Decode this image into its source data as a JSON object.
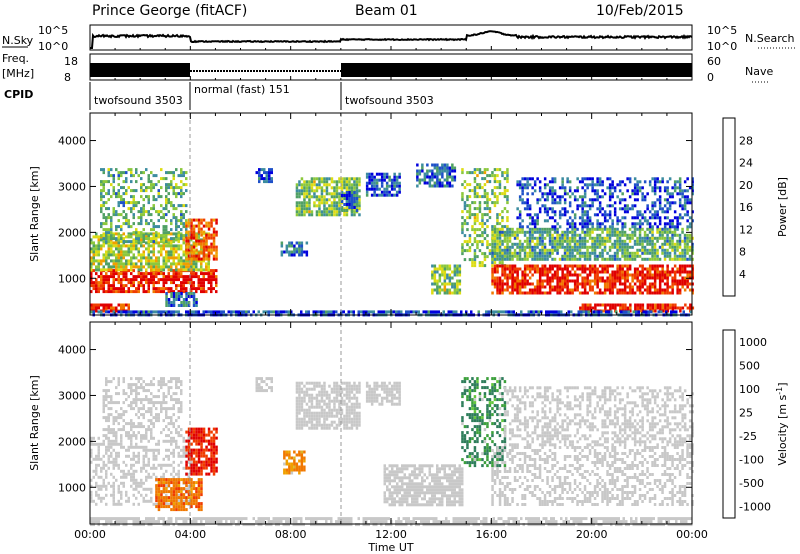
{
  "header": {
    "title": "Prince George (fitACF)",
    "beam": "Beam 01",
    "date": "10/Feb/2015"
  },
  "sky_panel": {
    "label": "N.Sky",
    "right_label": "N.Search",
    "left_ticks": [
      "10^5",
      "10^0"
    ],
    "right_ticks": [
      "10^5",
      "10^0"
    ]
  },
  "freq_panel": {
    "label_line1": "Freq.",
    "label_line2": "[MHz]",
    "left_ticks": [
      "18",
      "8"
    ],
    "right_ticks": [
      "60",
      "0"
    ],
    "right_label": "Nave"
  },
  "cpid": {
    "label": "CPID",
    "segments": [
      {
        "name": "twofsound 3503",
        "start_hour": 0,
        "end_hour": 4
      },
      {
        "name": "normal (fast) 151",
        "start_hour": 4,
        "end_hour": 10
      },
      {
        "name": "twofsound 3503",
        "start_hour": 10,
        "end_hour": 24
      }
    ]
  },
  "chart_data": [
    {
      "type": "heatmap",
      "name": "power",
      "ylabel": "Slant Range [km]",
      "yticks": [
        "1000",
        "2000",
        "3000",
        "4000"
      ],
      "ylim": [
        200,
        4600
      ],
      "xlim": [
        0,
        24
      ],
      "colorbar": {
        "label": "Power [dB]",
        "tick_labels": [
          "4",
          "8",
          "12",
          "16",
          "20",
          "24",
          "28"
        ],
        "colors": [
          "#0000dd",
          "#1e50c8",
          "#3c8ca0",
          "#50a064",
          "#8cc83c",
          "#dcdc14",
          "#f0a000",
          "#f07800",
          "#f03c00",
          "#e00000"
        ]
      },
      "regions": [
        {
          "t0": 0.0,
          "t1": 5.0,
          "r0": 700,
          "r1": 1200,
          "value": 28
        },
        {
          "t0": 0.0,
          "t1": 1.5,
          "r0": 300,
          "r1": 450,
          "value": 28
        },
        {
          "t0": 0.0,
          "t1": 4.7,
          "r0": 1200,
          "r1": 2000,
          "value": 16
        },
        {
          "t0": 0.4,
          "t1": 3.8,
          "r0": 1800,
          "r1": 3400,
          "value": 12
        },
        {
          "t0": 3.8,
          "t1": 5.0,
          "r0": 1400,
          "r1": 2300,
          "value": 24
        },
        {
          "t0": 3.0,
          "t1": 4.2,
          "r0": 400,
          "r1": 700,
          "value": 8
        },
        {
          "t0": 6.6,
          "t1": 7.2,
          "r0": 3100,
          "r1": 3400,
          "value": 6
        },
        {
          "t0": 7.6,
          "t1": 8.6,
          "r0": 1500,
          "r1": 1800,
          "value": 8
        },
        {
          "t0": 8.2,
          "t1": 10.7,
          "r0": 2400,
          "r1": 3200,
          "value": 14
        },
        {
          "t0": 10.0,
          "t1": 10.6,
          "r0": 2500,
          "r1": 2900,
          "value": 8
        },
        {
          "t0": 11.0,
          "t1": 12.3,
          "r0": 2800,
          "r1": 3300,
          "value": 6
        },
        {
          "t0": 13.6,
          "t1": 14.7,
          "r0": 700,
          "r1": 1300,
          "value": 14
        },
        {
          "t0": 13.0,
          "t1": 14.5,
          "r0": 3000,
          "r1": 3500,
          "value": 8
        },
        {
          "t0": 14.8,
          "t1": 16.6,
          "r0": 1300,
          "r1": 3400,
          "value": 14
        },
        {
          "t0": 16.0,
          "t1": 17.0,
          "r0": 700,
          "r1": 1300,
          "value": 28
        },
        {
          "t0": 16.0,
          "t1": 24.0,
          "r0": 1400,
          "r1": 2100,
          "value": 12
        },
        {
          "t0": 16.8,
          "t1": 24.0,
          "r0": 650,
          "r1": 1300,
          "value": 28
        },
        {
          "t0": 19.5,
          "t1": 24.0,
          "r0": 300,
          "r1": 450,
          "value": 28
        },
        {
          "t0": 17.0,
          "t1": 24.0,
          "r0": 2100,
          "r1": 3200,
          "value": 6
        },
        {
          "t0": 0.0,
          "t1": 24.0,
          "r0": 200,
          "r1": 300,
          "value": 6
        }
      ]
    },
    {
      "type": "heatmap",
      "name": "velocity",
      "ylabel": "Slant Range [km]",
      "yticks": [
        "1000",
        "2000",
        "3000",
        "4000"
      ],
      "ylim": [
        200,
        4600
      ],
      "xlim": [
        0,
        24
      ],
      "xticks": [
        "00:00",
        "04:00",
        "08:00",
        "12:00",
        "16:00",
        "20:00",
        "00:00"
      ],
      "xlabel": "Time UT",
      "colorbar": {
        "label_main": "Velocity [m s",
        "label_sup": "-1",
        "label_end": "]",
        "tick_labels": [
          "1000",
          "500",
          "100",
          "25",
          "-25",
          "-100",
          "-500",
          "-1000"
        ],
        "colors": [
          "#1e2aa0",
          "#2850c8",
          "#2e7d5a",
          "#3ca03c",
          "#64c83c",
          "#c8c8c8",
          "#c8c8c8",
          "#dcb428",
          "#f0a000",
          "#f07800",
          "#f03c00",
          "#e00000"
        ]
      },
      "regions": [
        {
          "t0": 0.0,
          "t1": 4.0,
          "r0": 600,
          "r1": 2100,
          "value": 0
        },
        {
          "t0": 0.5,
          "t1": 3.6,
          "r0": 2100,
          "r1": 3400,
          "value": 0
        },
        {
          "t0": 3.8,
          "t1": 5.0,
          "r0": 1300,
          "r1": 2300,
          "value": -800
        },
        {
          "t0": 2.6,
          "t1": 4.4,
          "r0": 500,
          "r1": 1200,
          "value": -300
        },
        {
          "t0": 7.7,
          "t1": 8.5,
          "r0": 1300,
          "r1": 1800,
          "value": -200
        },
        {
          "t0": 6.6,
          "t1": 7.2,
          "r0": 3100,
          "r1": 3400,
          "value": 0
        },
        {
          "t0": 8.2,
          "t1": 10.7,
          "r0": 2300,
          "r1": 3300,
          "value": 0
        },
        {
          "t0": 11.0,
          "t1": 12.3,
          "r0": 2800,
          "r1": 3300,
          "value": 0
        },
        {
          "t0": 11.7,
          "t1": 14.8,
          "r0": 600,
          "r1": 1500,
          "value": 0
        },
        {
          "t0": 14.8,
          "t1": 16.5,
          "r0": 1500,
          "r1": 3400,
          "value": 200
        },
        {
          "t0": 16.0,
          "t1": 24.0,
          "r0": 600,
          "r1": 1900,
          "value": 0
        },
        {
          "t0": 16.5,
          "t1": 24.0,
          "r0": 1900,
          "r1": 3200,
          "value": 0
        },
        {
          "t0": 0.0,
          "t1": 24.0,
          "r0": 200,
          "r1": 350,
          "value": 0
        }
      ]
    }
  ]
}
